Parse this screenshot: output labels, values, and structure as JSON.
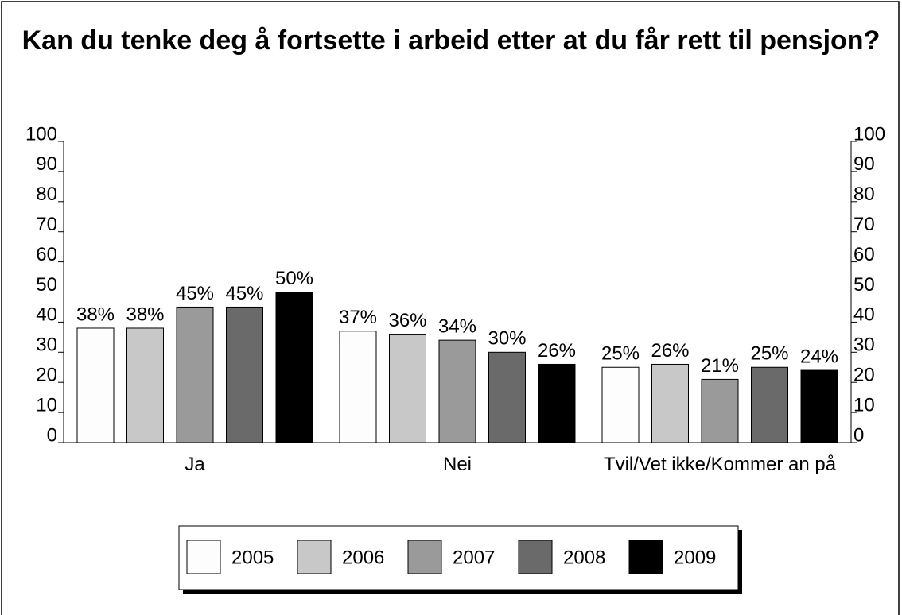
{
  "chart_data": {
    "type": "bar",
    "title": "Kan du tenke deg å fortsette i arbeid etter at du får rett til pensjon?",
    "categories": [
      "Ja",
      "Nei",
      "Tvil/Vet ikke/Kommer an på"
    ],
    "series": [
      {
        "name": "2005",
        "color": "#fdfdfd",
        "values": [
          38,
          37,
          25
        ],
        "value_labels": [
          "38%",
          "37%",
          "25%"
        ]
      },
      {
        "name": "2006",
        "color": "#c8c8c8",
        "values": [
          38,
          36,
          26
        ],
        "value_labels": [
          "38%",
          "36%",
          "26%"
        ]
      },
      {
        "name": "2007",
        "color": "#9a9a9a",
        "values": [
          45,
          34,
          21
        ],
        "value_labels": [
          "45%",
          "34%",
          "21%"
        ]
      },
      {
        "name": "2008",
        "color": "#6a6a6a",
        "values": [
          45,
          30,
          25
        ],
        "value_labels": [
          "45%",
          "30%",
          "25%"
        ]
      },
      {
        "name": "2009",
        "color": "#000000",
        "values": [
          50,
          26,
          24
        ],
        "value_labels": [
          "50%",
          "26%",
          "24%"
        ]
      }
    ],
    "ylim": [
      0,
      100
    ],
    "yticks": [
      0,
      10,
      20,
      30,
      40,
      50,
      60,
      70,
      80,
      90,
      100
    ],
    "y2lim": [
      0,
      100
    ],
    "y2ticks": [
      0,
      10,
      20,
      30,
      40,
      50,
      60,
      70,
      80,
      90,
      100
    ],
    "grid": false,
    "legend": "bottom"
  }
}
